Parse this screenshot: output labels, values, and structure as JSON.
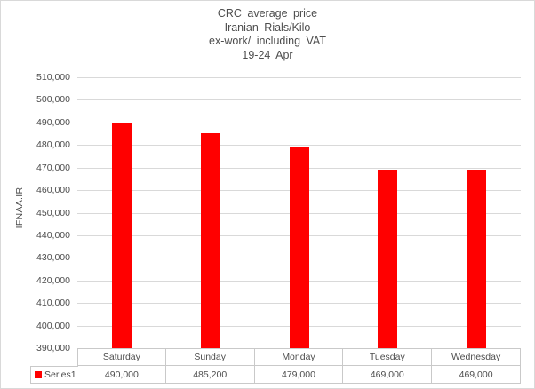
{
  "chart_data": {
    "type": "bar",
    "title_lines": [
      "CRC average price",
      "Iranian Rials/Kilo",
      "ex-work/ including VAT",
      "19-24 Apr"
    ],
    "ylabel": "IFNAA.IR",
    "xlabel": "",
    "categories": [
      "Saturday",
      "Sunday",
      "Monday",
      "Tuesday",
      "Wednesday"
    ],
    "series": [
      {
        "name": "Series1",
        "color": "#ff0000",
        "values": [
          490000,
          485200,
          479000,
          469000,
          469000
        ]
      }
    ],
    "table_value_labels": [
      "490,000",
      "485,200",
      "479,000",
      "469,000",
      "469,000"
    ],
    "ylim": [
      390000,
      510000
    ],
    "ytick_step": 10000,
    "ytick_labels": [
      "390,000",
      "400,000",
      "410,000",
      "420,000",
      "430,000",
      "440,000",
      "450,000",
      "460,000",
      "470,000",
      "480,000",
      "490,000",
      "500,000",
      "510,000"
    ],
    "grid": true,
    "legend": {
      "position": "data-table",
      "entries": [
        "Series1"
      ]
    },
    "colors": {
      "bar": "#ff0000",
      "gridline": "#d9d9d9",
      "text": "#4d4d4d",
      "table_border": "#c9c9c9",
      "chart_border": "#d9d9d9",
      "background": "#ffffff"
    }
  }
}
